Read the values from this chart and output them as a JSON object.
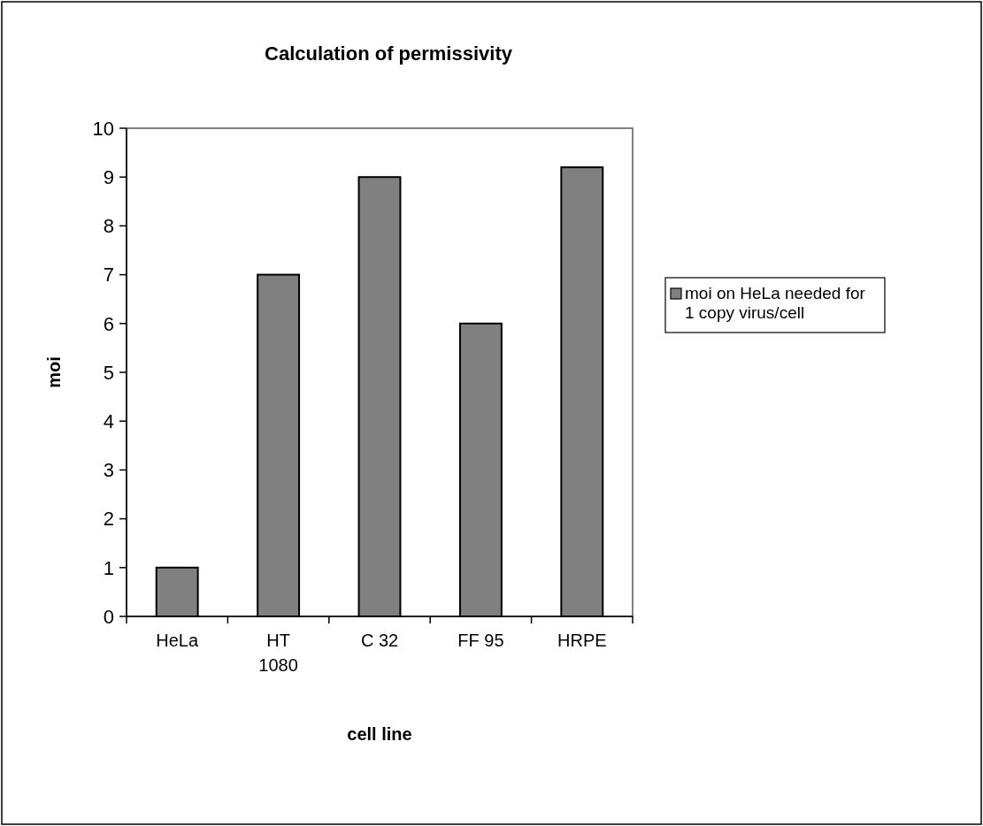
{
  "chart_data": {
    "type": "bar",
    "title": "Calculation of permissivity",
    "xlabel": "cell line",
    "ylabel": "moi",
    "categories": [
      "HeLa",
      "HT 1080",
      "C 32",
      "FF 95",
      "HRPE"
    ],
    "series": [
      {
        "name": "moi on HeLa needed for 1 copy virus/cell",
        "color": "#808080",
        "values": [
          1,
          7,
          9,
          6,
          9.2
        ]
      }
    ],
    "ylim": [
      0,
      10
    ],
    "yticks": [
      0,
      1,
      2,
      3,
      4,
      5,
      6,
      7,
      8,
      9,
      10
    ],
    "grid": false,
    "legend": "right"
  }
}
